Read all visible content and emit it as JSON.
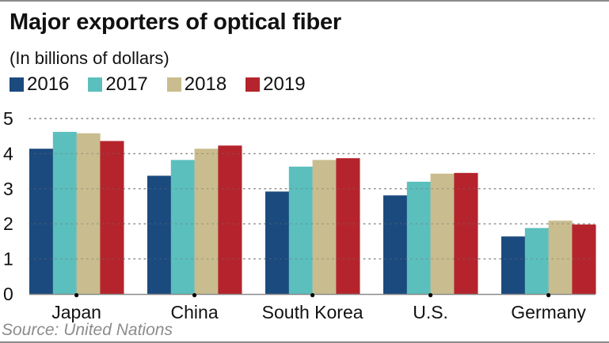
{
  "chart_data": {
    "type": "bar",
    "title": "Major exporters of optical fiber",
    "subtitle": "(In billions of dollars)",
    "xlabel": "",
    "ylabel": "",
    "ylim": [
      0,
      5
    ],
    "yticks": [
      "0",
      "1",
      "2",
      "3",
      "4",
      "5"
    ],
    "ytick_values": [
      0,
      1,
      2,
      3,
      4,
      5
    ],
    "grid": true,
    "legend_position": "top-left",
    "categories": [
      "Japan",
      "China",
      "South Korea",
      "U.S.",
      "Germany"
    ],
    "series": [
      {
        "name": "2016",
        "color": "#1b4a7e",
        "values": [
          4.14,
          3.37,
          2.92,
          2.81,
          1.64
        ]
      },
      {
        "name": "2017",
        "color": "#5bbfbd",
        "values": [
          4.62,
          3.82,
          3.63,
          3.2,
          1.88
        ]
      },
      {
        "name": "2018",
        "color": "#c9bc8e",
        "values": [
          4.58,
          4.14,
          3.82,
          3.43,
          2.09
        ]
      },
      {
        "name": "2019",
        "color": "#b5242c",
        "values": [
          4.36,
          4.23,
          3.87,
          3.45,
          1.98
        ]
      }
    ],
    "source": "Source: United Nations"
  }
}
